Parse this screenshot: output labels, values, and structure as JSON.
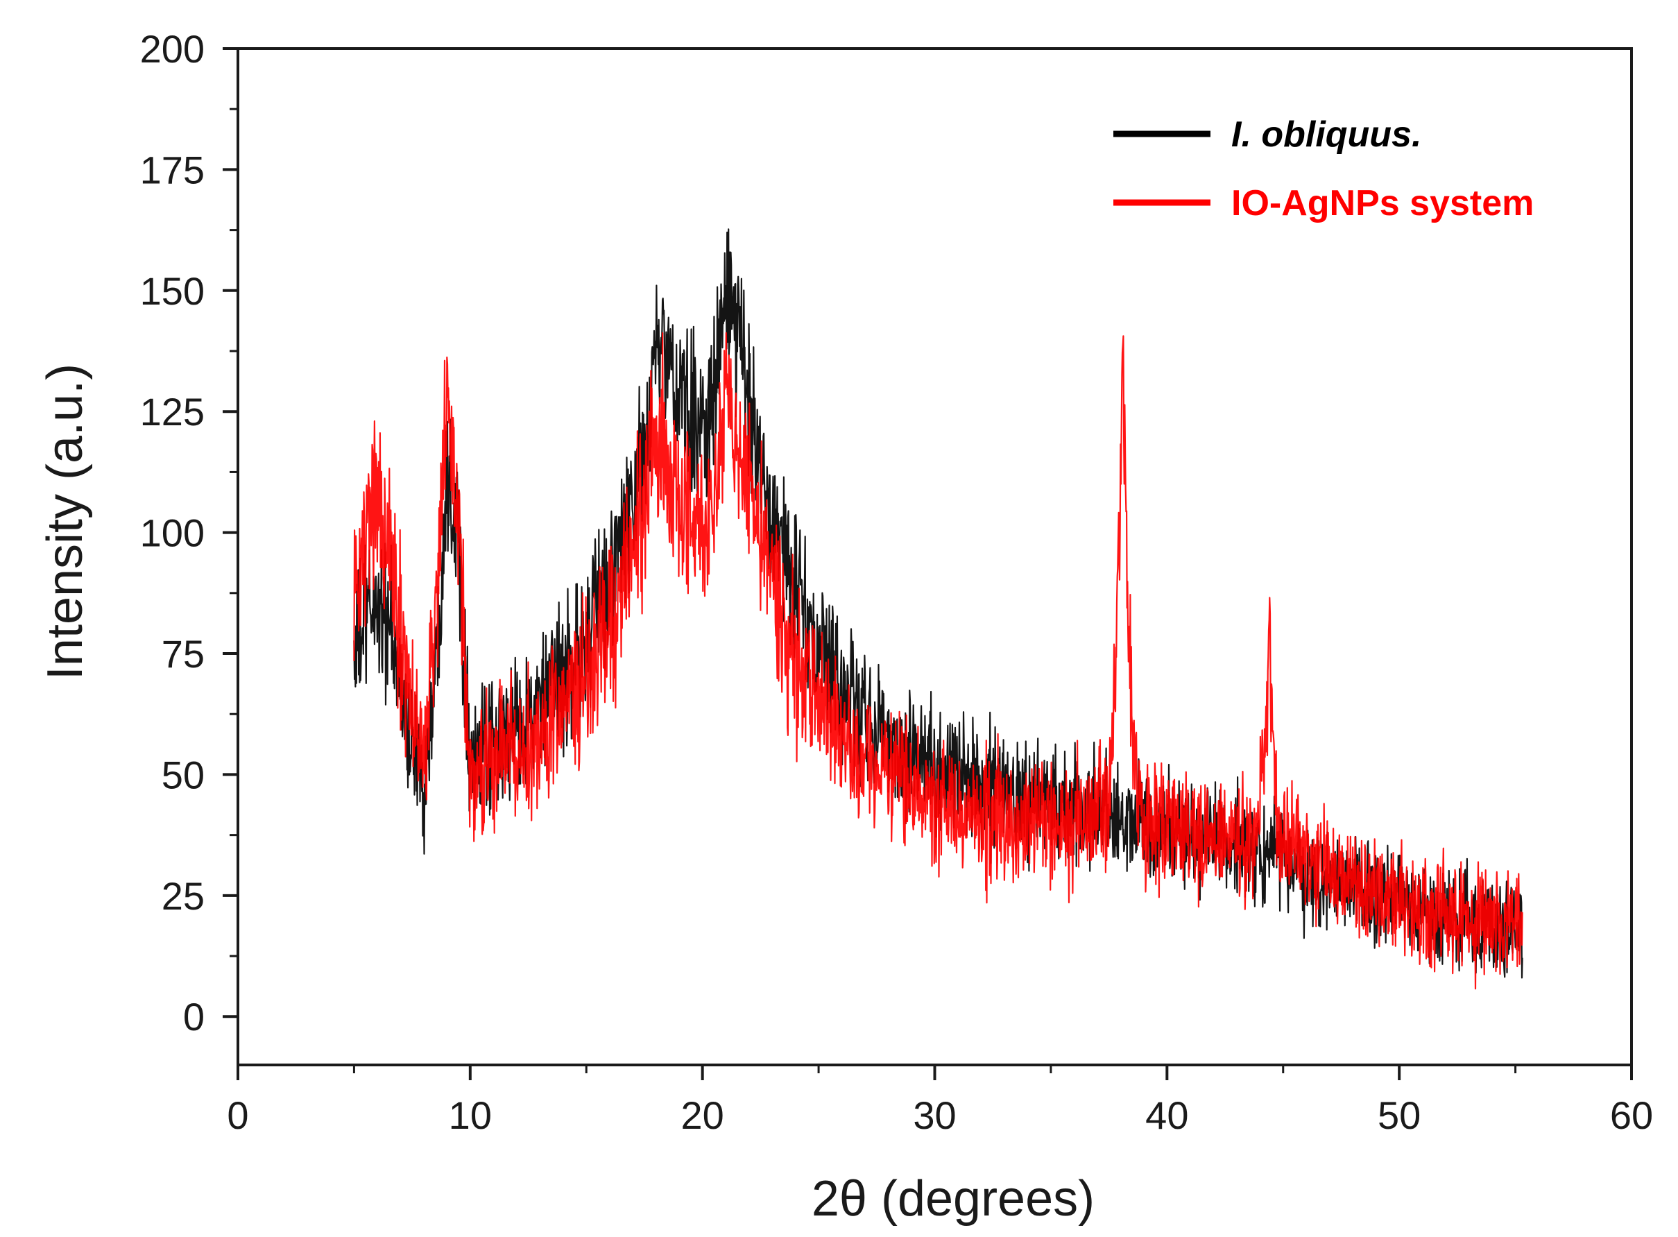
{
  "chart_data": {
    "type": "line",
    "title": "",
    "xlabel": "2θ (degrees)",
    "ylabel": "Intensity (a.u.)",
    "xlim": [
      0,
      60
    ],
    "ylim": [
      -10,
      200
    ],
    "xticks": [
      0,
      10,
      20,
      30,
      40,
      50,
      60
    ],
    "yticks": [
      0,
      25,
      50,
      75,
      100,
      125,
      150,
      175,
      200
    ],
    "xtick_labels": [
      "0",
      "10",
      "20",
      "30",
      "40",
      "50",
      "60"
    ],
    "ytick_labels": [
      "0",
      "25",
      "50",
      "75",
      "100",
      "125",
      "150",
      "175",
      "200"
    ],
    "grid": false,
    "legend_position": "top-right",
    "series": [
      {
        "name": "I. obliquus.",
        "color": "#000000",
        "italic": true,
        "noise": 9,
        "x": [
          5,
          5.5,
          6,
          6.5,
          7,
          7.5,
          8,
          8.5,
          9,
          9.5,
          10,
          11,
          12,
          13,
          14,
          15,
          16,
          17,
          17.5,
          18,
          18.5,
          19,
          19.5,
          20,
          20.5,
          21,
          21.5,
          22,
          22.5,
          23,
          24,
          25,
          26,
          27,
          28,
          29,
          30,
          32,
          34,
          36,
          38,
          40,
          42,
          44,
          46,
          48,
          50,
          52,
          54,
          55.3
        ],
        "y": [
          75,
          82,
          86,
          80,
          68,
          56,
          48,
          70,
          115,
          100,
          52,
          55,
          60,
          64,
          70,
          78,
          90,
          106,
          115,
          140,
          135,
          128,
          123,
          122,
          130,
          148,
          142,
          128,
          115,
          105,
          88,
          75,
          68,
          62,
          58,
          54,
          52,
          48,
          45,
          43,
          40,
          39,
          37,
          33,
          30,
          27,
          24,
          20,
          20,
          20
        ]
      },
      {
        "name": "IO-AgNPs system",
        "color": "#ff0000",
        "italic": false,
        "noise": 10,
        "x": [
          5,
          5.5,
          6,
          6.5,
          7,
          7.5,
          8,
          8.5,
          9,
          9.5,
          10,
          11,
          12,
          13,
          14,
          15,
          16,
          17,
          17.5,
          18,
          18.5,
          19,
          19.5,
          20,
          20.5,
          21,
          21.5,
          22,
          22.5,
          23,
          24,
          25,
          26,
          27,
          28,
          29,
          30,
          32,
          34,
          36,
          37.5,
          37.9,
          38.1,
          38.3,
          38.7,
          40,
          42,
          43.8,
          44.2,
          44.4,
          44.8,
          46,
          48,
          50,
          52,
          54,
          55.3
        ],
        "y": [
          85,
          100,
          110,
          98,
          78,
          62,
          55,
          80,
          125,
          105,
          50,
          52,
          55,
          58,
          64,
          70,
          80,
          96,
          105,
          120,
          115,
          108,
          103,
          102,
          110,
          127,
          120,
          110,
          100,
          90,
          74,
          65,
          58,
          53,
          50,
          47,
          44,
          41,
          40,
          40,
          42,
          90,
          135,
          85,
          42,
          40,
          37,
          36,
          60,
          78,
          38,
          32,
          27,
          24,
          20,
          19,
          20
        ]
      }
    ]
  },
  "legend": {
    "items": [
      {
        "label": "I. obliquus.",
        "color": "#000000"
      },
      {
        "label": "IO-AgNPs system",
        "color": "#ff0000"
      }
    ]
  },
  "axes": {
    "x_title": "2θ (degrees)",
    "y_title": "Intensity (a.u.)"
  }
}
